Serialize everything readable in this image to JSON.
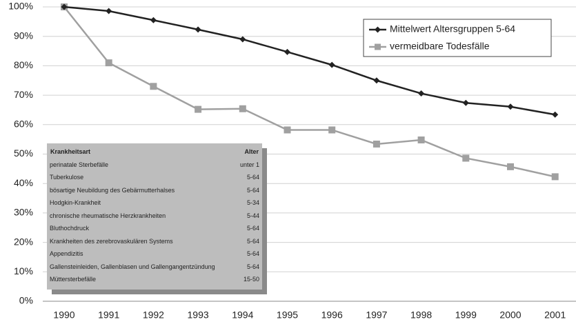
{
  "chart_data": {
    "type": "line",
    "categories": [
      "1990",
      "1991",
      "1992",
      "1993",
      "1994",
      "1995",
      "1996",
      "1997",
      "1998",
      "1999",
      "2000",
      "2001"
    ],
    "series": [
      {
        "name": "Mittelwert Altersgruppen 5-64",
        "color": "#222222",
        "marker": "diamond",
        "values": [
          100,
          98.6,
          95.5,
          92.3,
          89,
          84.7,
          80.3,
          75,
          70.6,
          67.4,
          66.1,
          63.4
        ]
      },
      {
        "name": "vermeidbare Todesfälle",
        "color": "#a0a0a0",
        "marker": "square",
        "values": [
          100,
          81,
          73,
          65.2,
          65.4,
          58.2,
          58.2,
          53.4,
          54.8,
          48.6,
          45.7,
          42.3
        ]
      }
    ],
    "ylim": [
      0,
      100
    ],
    "yticks": [
      {
        "value": 0,
        "label": "0%"
      },
      {
        "value": 10,
        "label": "10%"
      },
      {
        "value": 20,
        "label": "20%"
      },
      {
        "value": 30,
        "label": "30%"
      },
      {
        "value": 40,
        "label": "40%"
      },
      {
        "value": 50,
        "label": "50%"
      },
      {
        "value": 60,
        "label": "60%"
      },
      {
        "value": 70,
        "label": "70%"
      },
      {
        "value": 80,
        "label": "80%"
      },
      {
        "value": 90,
        "label": "90%"
      },
      {
        "value": 100,
        "label": "100%"
      }
    ],
    "grid": true,
    "legend": "upper right",
    "table": {
      "columns": [
        "Krankheitsart",
        "Alter"
      ],
      "rows": [
        [
          "perinatale Sterbefälle",
          "unter 1"
        ],
        [
          "Tuberkulose",
          "5-64"
        ],
        [
          "bösartige Neubildung des Gebärmutterhalses",
          "5-64"
        ],
        [
          "Hodgkin-Krankheit",
          "5-34"
        ],
        [
          "chronische rheumatische Herzkrankheiten",
          "5-44"
        ],
        [
          "Bluthochdruck",
          "5-64"
        ],
        [
          "Krankheiten des zerebrovaskulären Systems",
          "5-64"
        ],
        [
          "Appendizitis",
          "5-64"
        ],
        [
          "Gallensteinleiden, Gallenblasen und Gallengangentzündung",
          "5-64"
        ],
        [
          "Müttersterbefälle",
          "15-50"
        ]
      ]
    }
  }
}
